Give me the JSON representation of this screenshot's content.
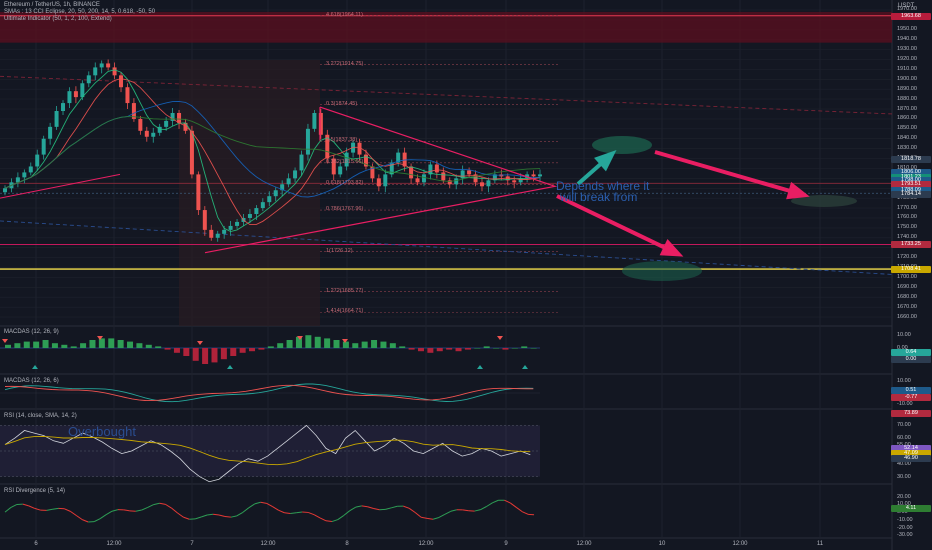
{
  "header": {
    "title": "Ethereum / TetherUS, 1h, BINANCE",
    "line2": "SMAs : 13 CCI Eclipse, 20, 50, 200, 14, 5, 0.618, -50, 50",
    "line3": "Ultimate Indicator (50, 1, 2, 100, Extend)"
  },
  "price_axis": {
    "unit": "USDT",
    "ticks": [
      1970,
      1960,
      1950,
      1940,
      1930,
      1920,
      1910,
      1900,
      1890,
      1880,
      1870,
      1860,
      1850,
      1840,
      1830,
      1820,
      1810,
      1800,
      1790,
      1780,
      1770,
      1760,
      1750,
      1740,
      1730,
      1720,
      1710,
      1700,
      1690,
      1680,
      1670,
      1660
    ],
    "labels": [
      "1970.00",
      "1960.00",
      "1950.00",
      "1940.00",
      "1930.00",
      "1920.00",
      "1910.00",
      "1900.00",
      "1890.00",
      "1880.00",
      "1870.00",
      "1860.00",
      "1850.00",
      "1840.00",
      "1830.00",
      "1820.00",
      "1810.00",
      "1800.00",
      "1790.00",
      "1780.00",
      "1770.00",
      "1760.00",
      "1750.00",
      "1740.00",
      "1730.00",
      "1720.00",
      "1710.00",
      "1700.00",
      "1690.00",
      "1680.00",
      "1670.00",
      "1660.00"
    ],
    "tags": [
      {
        "label": "1963.68",
        "value": 1963.68,
        "color": "#b71c3c"
      },
      {
        "label": "1818.78",
        "value": 1818.78,
        "color": "#2c3b4f"
      },
      {
        "label": "1806.00",
        "value": 1806.0,
        "color": "#1e5a8a"
      },
      {
        "label": "1801.23",
        "value": 1801.23,
        "color": "#148f77"
      },
      {
        "label": "1798.00",
        "value": 1798.0,
        "color": "#1e5a8a"
      },
      {
        "label": "1793.51",
        "value": 1793.51,
        "color": "#b22a3f"
      },
      {
        "label": "1788.09",
        "value": 1788.09,
        "color": "#1e5a8a"
      },
      {
        "label": "1784.14",
        "value": 1784.14,
        "color": "#2c3b4f"
      },
      {
        "label": "1733.25",
        "value": 1733.25,
        "color": "#b22a3f"
      },
      {
        "label": "1708.41",
        "value": 1708.41,
        "color": "#c9a800"
      }
    ]
  },
  "fib_labels": [
    {
      "text": "4.618(1964.11)",
      "value": 1964.11
    },
    {
      "text": "3.272(1914.75)",
      "value": 1914.75
    },
    {
      "text": "0.3(1874.45)",
      "value": 1874.45
    },
    {
      "text": "0.5(1837.38)",
      "value": 1837.38
    },
    {
      "text": "0.382(1815.66)",
      "value": 1815.66
    },
    {
      "text": "0.618(1793.82)",
      "value": 1793.82
    },
    {
      "text": "0.786(1767.96)",
      "value": 1767.96
    },
    {
      "text": "1(1726.12)",
      "value": 1726.12
    },
    {
      "text": "1.272(1685.77)",
      "value": 1685.77
    },
    {
      "text": "1.414(1664.71)",
      "value": 1664.71
    }
  ],
  "annotation": {
    "line1": "Depends where it",
    "line2": "will break from",
    "overbought": "Overbought"
  },
  "panes": {
    "macdas1": {
      "title": "MACDAS (12, 26, 9)",
      "labels": [
        "10.00",
        "0.00",
        "-10.00"
      ],
      "tags": [
        {
          "label": "0.64",
          "color": "#26a69a"
        },
        {
          "label": "0.00",
          "color": "#2c3b4f"
        }
      ]
    },
    "macdas2": {
      "title": "MACDAS (12, 26, 6)",
      "labels": [
        "10.00",
        "0.00",
        "-10.00"
      ],
      "tags": [
        {
          "label": "0.51",
          "color": "#1e5a8a"
        },
        {
          "label": "-0.77",
          "color": "#b22a3f"
        }
      ]
    },
    "rsi": {
      "title": "RSI (14, close, SMA, 14, 2)",
      "labels": [
        "70.00",
        "60.00",
        "55.00",
        "50.00",
        "45.00",
        "40.00",
        "30.00"
      ],
      "tags": [
        {
          "label": "73.89",
          "color": "#b22a3f"
        },
        {
          "label": "52.14",
          "color": "#7e57c2"
        },
        {
          "label": "47.09",
          "color": "#c9a800"
        },
        {
          "label": "46.90",
          "color": "#2c3b4f"
        }
      ]
    },
    "rsidiv": {
      "title": "RSI Divergence (5, 14)",
      "labels": [
        "20.00",
        "10.00",
        "0.00",
        "-10.00",
        "-20.00",
        "-30.00"
      ],
      "tags": [
        {
          "label": "4.11",
          "color": "#2e7d32"
        }
      ]
    }
  },
  "x_axis": [
    {
      "label": "6",
      "pos": 36
    },
    {
      "label": "12:00",
      "pos": 114
    },
    {
      "label": "7",
      "pos": 192
    },
    {
      "label": "12:00",
      "pos": 268
    },
    {
      "label": "8",
      "pos": 347
    },
    {
      "label": "12:00",
      "pos": 426
    },
    {
      "label": "9",
      "pos": 506
    },
    {
      "label": "12:00",
      "pos": 584
    },
    {
      "label": "10",
      "pos": 662
    },
    {
      "label": "12:00",
      "pos": 740
    },
    {
      "label": "11",
      "pos": 820
    }
  ],
  "chart_data": {
    "type": "candlestick",
    "close_series": [
      1790,
      1796,
      1801,
      1806,
      1812,
      1824,
      1840,
      1852,
      1868,
      1876,
      1888,
      1882,
      1896,
      1904,
      1912,
      1916,
      1912,
      1904,
      1892,
      1876,
      1860,
      1848,
      1842,
      1846,
      1852,
      1858,
      1866,
      1856,
      1848,
      1804,
      1768,
      1748,
      1740,
      1744,
      1748,
      1752,
      1756,
      1760,
      1764,
      1770,
      1776,
      1782,
      1788,
      1794,
      1800,
      1808,
      1824,
      1850,
      1866,
      1844,
      1820,
      1804,
      1812,
      1826,
      1836,
      1824,
      1812,
      1800,
      1792,
      1804,
      1816,
      1826,
      1812,
      1800,
      1796,
      1804,
      1814,
      1806,
      1798,
      1794,
      1800,
      1808,
      1804,
      1796,
      1792,
      1798,
      1804,
      1802,
      1798,
      1796,
      1800,
      1804,
      1802,
      1804
    ],
    "ylim": [
      1655,
      1975
    ],
    "colors": {
      "up": "#26a69a",
      "down": "#ef5350"
    }
  },
  "colors": {
    "accent": "#e91e63",
    "bg": "#131722",
    "grid": "#1e222d",
    "zone": "#5c0f1f",
    "yellow": "#f4e04d",
    "green": "#26a69a",
    "red": "#ef5350"
  }
}
